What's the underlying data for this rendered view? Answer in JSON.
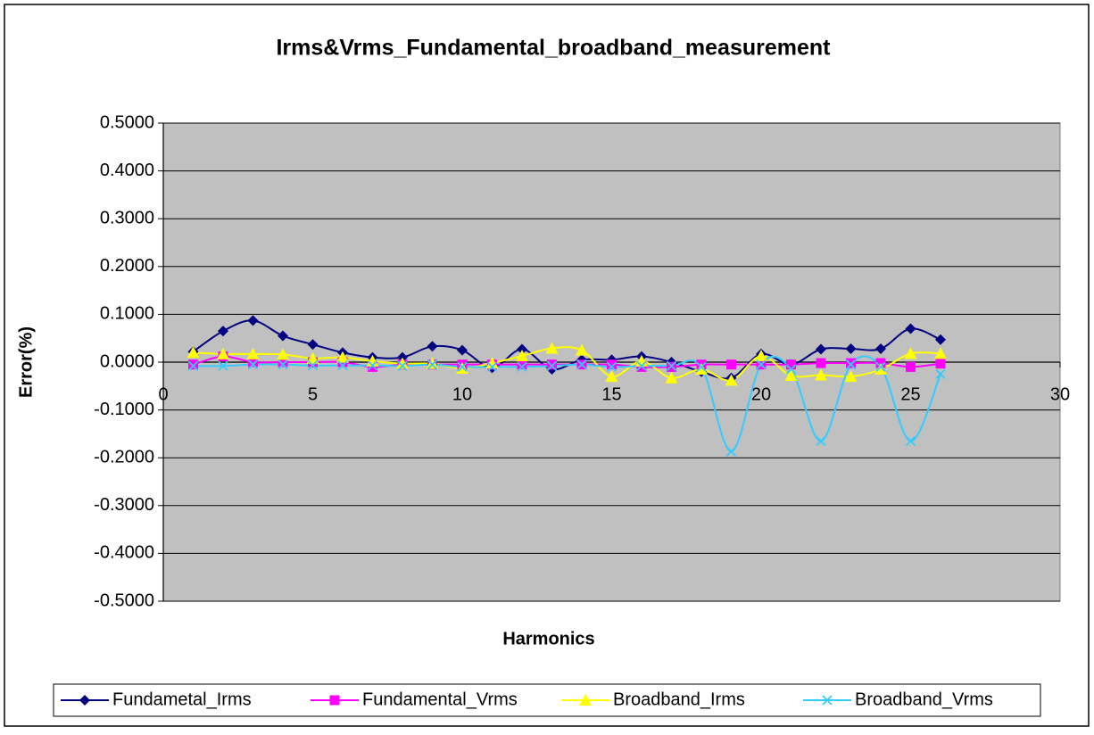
{
  "chart_data": {
    "type": "line",
    "title": "Irms&Vrms_Fundamental_broadband_measurement",
    "x_label": "Harmonics",
    "y_label": "Error(%)",
    "x": [
      1,
      2,
      3,
      4,
      5,
      6,
      7,
      8,
      9,
      10,
      11,
      12,
      13,
      14,
      15,
      16,
      17,
      18,
      19,
      20,
      21,
      22,
      23,
      24,
      25,
      26
    ],
    "xlim": [
      0,
      30
    ],
    "xticks": [
      0,
      5,
      10,
      15,
      20,
      25,
      30
    ],
    "ylim": [
      -0.5,
      0.5
    ],
    "yticks": [
      {
        "value": 0.5,
        "label": "0.5000"
      },
      {
        "value": 0.4,
        "label": "0.4000"
      },
      {
        "value": 0.3,
        "label": "0.3000"
      },
      {
        "value": 0.2,
        "label": "0.2000"
      },
      {
        "value": 0.1,
        "label": "0.1000"
      },
      {
        "value": 0,
        "label": "0.0000"
      },
      {
        "value": -0.1,
        "label": "-0.1000"
      },
      {
        "value": -0.2,
        "label": "-0.2000"
      },
      {
        "value": -0.3,
        "label": "-0.3000"
      },
      {
        "value": -0.4,
        "label": "-0.4000"
      },
      {
        "value": -0.5,
        "label": "-0.5000"
      }
    ],
    "grid": true,
    "smooth": true,
    "plot_background": "#c0c0c0",
    "legend": "bottom",
    "series": [
      {
        "name": "Fundametal_Irms",
        "color": "#000080",
        "marker": "diamond",
        "values": [
          0.022,
          0.065,
          0.087,
          0.055,
          0.037,
          0.02,
          0.01,
          0.01,
          0.033,
          0.025,
          -0.012,
          0.027,
          -0.015,
          0.005,
          0.005,
          0.012,
          0,
          -0.02,
          -0.033,
          0.017,
          -0.005,
          0.027,
          0.028,
          0.028,
          0.07,
          0.047
        ]
      },
      {
        "name": "Fundamental_Vrms",
        "color": "#ff00ff",
        "marker": "square",
        "values": [
          -0.005,
          0.012,
          0,
          0,
          0,
          0,
          -0.01,
          -0.005,
          -0.005,
          -0.005,
          -0.005,
          -0.005,
          -0.005,
          -0.005,
          -0.005,
          -0.01,
          -0.01,
          -0.005,
          -0.005,
          -0.005,
          -0.005,
          -0.002,
          -0.002,
          -0.002,
          -0.01,
          -0.003
        ]
      },
      {
        "name": "Broadband_Irms",
        "color": "#ffff00",
        "marker": "triangle",
        "values": [
          0.02,
          0.017,
          0.017,
          0.016,
          0.008,
          0.01,
          0.002,
          -0.003,
          -0.003,
          -0.013,
          -0.002,
          0.013,
          0.029,
          0.025,
          -0.03,
          0.002,
          -0.033,
          -0.015,
          -0.038,
          0.013,
          -0.028,
          -0.027,
          -0.03,
          -0.015,
          0.018,
          0.018
        ]
      },
      {
        "name": "Broadband_Vrms",
        "color": "#33ccff",
        "marker": "x",
        "values": [
          -0.008,
          -0.008,
          -0.005,
          -0.005,
          -0.007,
          -0.007,
          -0.007,
          -0.008,
          -0.005,
          -0.01,
          -0.01,
          -0.01,
          -0.008,
          -0.005,
          -0.01,
          -0.008,
          -0.008,
          -0.01,
          -0.187,
          -0.005,
          -0.015,
          -0.165,
          -0.005,
          -0.01,
          -0.165,
          -0.025
        ]
      }
    ]
  }
}
